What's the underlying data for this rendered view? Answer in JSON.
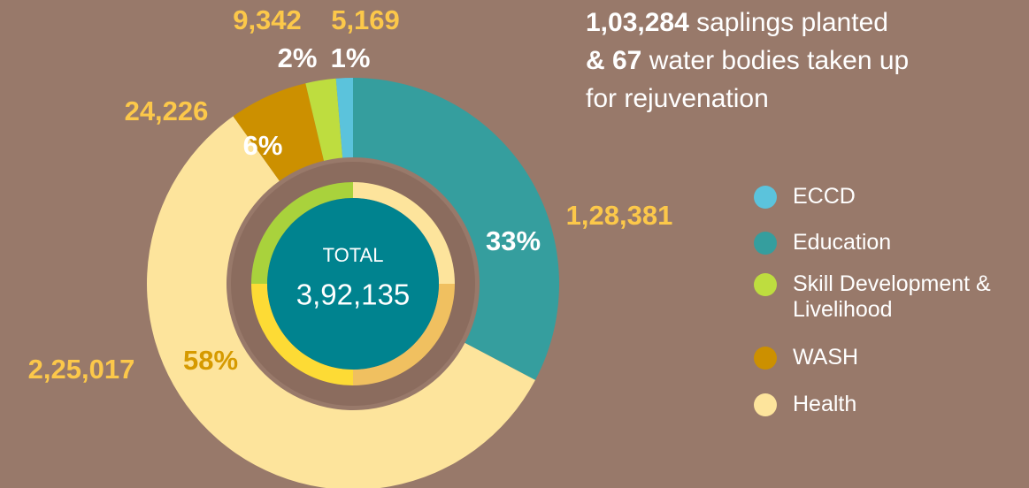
{
  "chart_data": {
    "type": "donut",
    "categories": [
      "Education",
      "Health",
      "WASH",
      "Skill Development & Livelihood",
      "ECCD"
    ],
    "values": [
      128381,
      225017,
      24226,
      9342,
      5169
    ],
    "value_labels": [
      "1,28,381",
      "2,25,017",
      "24,226",
      "9,342",
      "5,169"
    ],
    "percent_labels": [
      "33%",
      "58%",
      "6%",
      "2%",
      "1%"
    ],
    "colors": [
      "#359e9e",
      "#fde49c",
      "#cc9000",
      "#bedd3f",
      "#5bc3dc"
    ],
    "total_label": "TOTAL",
    "total": {
      "value": 392135,
      "label": "3,92,135"
    },
    "legend": "right"
  },
  "note": {
    "lines": [
      {
        "bold": "1,03,284",
        "text": " saplings planted"
      },
      {
        "bold": "& 67",
        "text": " water bodies taken up"
      },
      {
        "bold": "",
        "text": "for rejuvenation"
      }
    ]
  }
}
